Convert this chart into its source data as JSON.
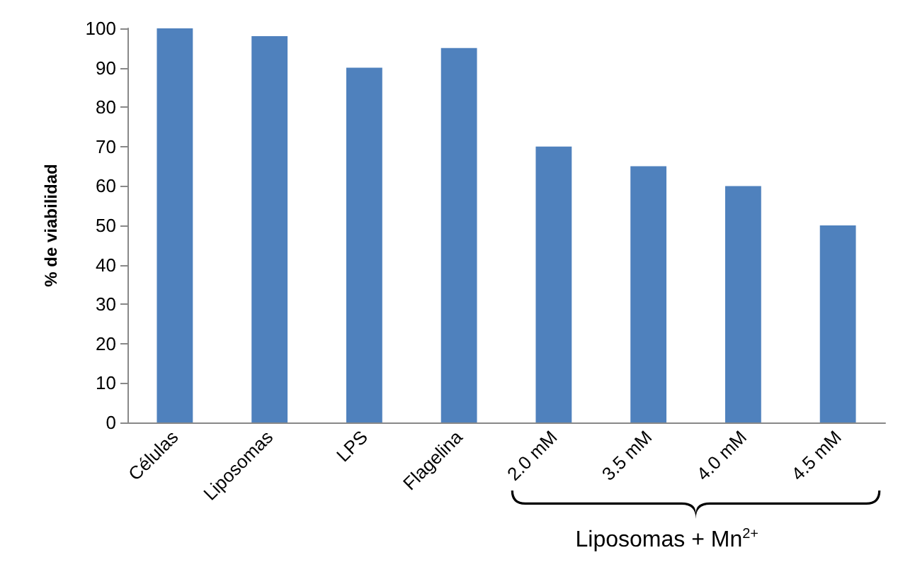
{
  "chart_data": {
    "type": "bar",
    "ylabel": "% de viabilidad",
    "categories": [
      "Células",
      "Liposomas",
      "LPS",
      "Flagelina",
      "2.0 mM",
      "3.5 mM",
      "4.0 mM",
      "4.5 mM"
    ],
    "values": [
      100,
      98,
      90,
      95,
      70,
      65,
      60,
      50
    ],
    "color": "#4f81bd",
    "ylim": [
      0,
      100
    ],
    "yticks": [
      0,
      10,
      20,
      30,
      40,
      50,
      60,
      70,
      80,
      90,
      100
    ],
    "grid": false,
    "annotations": [
      "Liposomas + Mn$^{2+}$"
    ]
  }
}
